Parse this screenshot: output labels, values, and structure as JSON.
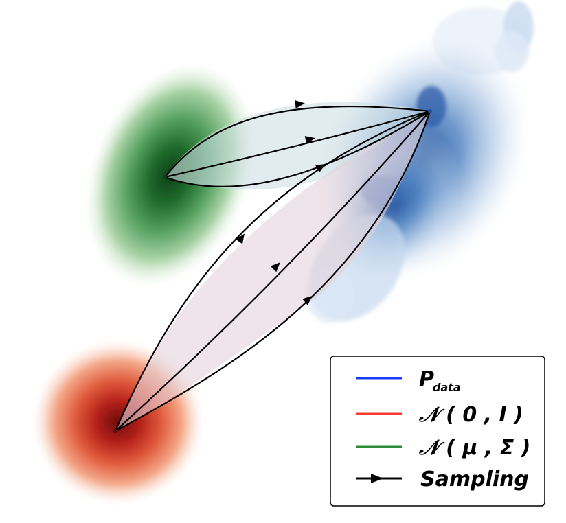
{
  "colors": {
    "data": "#2c62b0",
    "standard_normal": "#b3201a",
    "learned_normal": "#1f6b2c",
    "path_fill_green": "#d7e3e8",
    "path_fill_red": "#e4d6de",
    "arrow": "#000000"
  },
  "legend": {
    "items": [
      {
        "label": "P",
        "subscript": "data",
        "line_color": "#1a3cff",
        "kind": "line"
      },
      {
        "label": "𝒩 ( 0 , I )",
        "line_color": "#ff3b30",
        "kind": "line"
      },
      {
        "label": "𝒩 ( μ , Σ )",
        "line_color": "#2e8b3a",
        "kind": "line"
      },
      {
        "label": "Sampling",
        "line_color": "#000000",
        "kind": "arrow"
      }
    ]
  },
  "icons": {
    "data_blob": "blue-density-blob",
    "standard_blob": "red-density-blob",
    "learned_blob": "green-density-blob",
    "path_arrow": "arrowhead-icon"
  }
}
